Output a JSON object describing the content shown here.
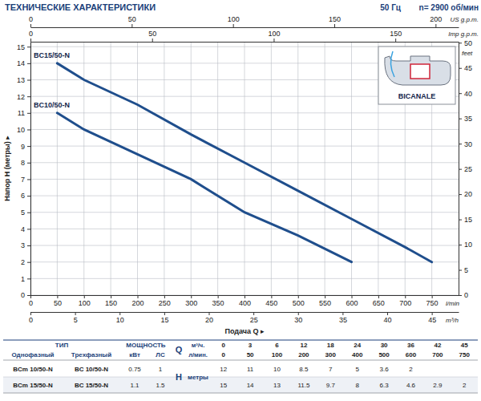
{
  "chart_data": {
    "type": "line",
    "title": "ТЕХНИЧЕСКИЕ ХАРАКТЕРИСТИКИ",
    "frequency": "50 Гц",
    "speed": "n= 2900 об/мин",
    "xlabel": "Подача Q ▸",
    "ylabel": "Напор H (метры) ▸",
    "x_unit": "l/min",
    "xlim": [
      0,
      800
    ],
    "xticks": [
      0,
      50,
      100,
      150,
      200,
      250,
      300,
      350,
      400,
      450,
      500,
      550,
      600,
      650,
      700,
      750
    ],
    "ylim": [
      0,
      15.3
    ],
    "yticks": [
      0,
      1,
      2,
      3,
      4,
      5,
      6,
      7,
      8,
      9,
      10,
      11,
      12,
      13,
      14,
      15
    ],
    "y2_label": "feet",
    "y2lim": [
      0,
      50.2
    ],
    "y2ticks": [
      0,
      5,
      10,
      15,
      20,
      25,
      30,
      35,
      40,
      45,
      50
    ],
    "x2": {
      "label": "m³/h",
      "lim": [
        0,
        48
      ],
      "ticks": [
        0,
        5,
        10,
        15,
        20,
        25,
        30,
        35,
        40,
        45
      ]
    },
    "x3": {
      "label": "US g.p.m.",
      "lim": [
        0,
        211.34
      ],
      "ticks": [
        0,
        50,
        100,
        150,
        200
      ]
    },
    "x4": {
      "label": "Imp g.p.m.",
      "lim": [
        0,
        175.98
      ],
      "ticks": [
        0,
        50,
        100,
        150
      ]
    },
    "grid": true,
    "inset_label": "BICANALE",
    "series": [
      {
        "name": "BC15/50-N",
        "color": "#1f4e8c",
        "x": [
          50,
          100,
          200,
          300,
          400,
          500,
          600,
          700,
          750
        ],
        "values": [
          14,
          13,
          11.5,
          9.7,
          8,
          6.3,
          4.6,
          2.9,
          2
        ]
      },
      {
        "name": "BC10/50-N",
        "color": "#1f4e8c",
        "x": [
          50,
          100,
          200,
          300,
          400,
          500,
          600
        ],
        "values": [
          11,
          10,
          8.5,
          7,
          5,
          3.6,
          2
        ]
      }
    ]
  },
  "table": {
    "type_head": "ТИП",
    "power_head": "МОЩНОСТЬ",
    "q_head": "Q",
    "h_head": "H",
    "columns": [
      "Однофазный",
      "Трехфазный",
      "кВт",
      "ЛС"
    ],
    "q_units": [
      "м³/ч.",
      "л/мин."
    ],
    "q_m3h": [
      0,
      3,
      6,
      12,
      18,
      24,
      30,
      36,
      42,
      45
    ],
    "q_lmin": [
      0,
      50,
      100,
      200,
      300,
      400,
      500,
      600,
      700,
      750
    ],
    "h_unit": "метры",
    "rows": [
      {
        "single": "BCm 10/50-N",
        "three": "BC 10/50-N",
        "kw": 0.75,
        "hp": 1,
        "h": [
          12,
          11,
          10,
          8.5,
          7,
          5,
          3.6,
          2
        ]
      },
      {
        "single": "BCm 15/50-N",
        "three": "BC 15/50-N",
        "kw": 1.1,
        "hp": 1.5,
        "h": [
          15,
          14,
          13,
          11.5,
          9.7,
          8,
          6.3,
          4.6,
          2.9,
          2
        ]
      }
    ]
  }
}
